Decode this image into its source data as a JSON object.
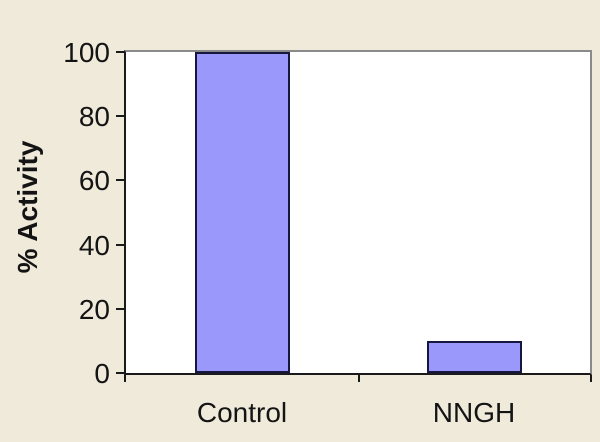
{
  "chart_data": {
    "type": "bar",
    "categories": [
      "Control",
      "NNGH"
    ],
    "values": [
      100,
      10
    ],
    "title": "",
    "xlabel": "",
    "ylabel": "% Activity",
    "ylim": [
      0,
      100
    ],
    "yticks": [
      0,
      20,
      40,
      60,
      80,
      100
    ],
    "grid": false,
    "legend": false,
    "colors": {
      "page_background": "#F0EADB",
      "plot_background": "#FFFFFF",
      "bar_fill": "#9A99FB",
      "bar_border": "#16163F",
      "axis_line": "#1A1A1A",
      "frame_line": "#8A8A8A",
      "text": "#141414"
    }
  }
}
